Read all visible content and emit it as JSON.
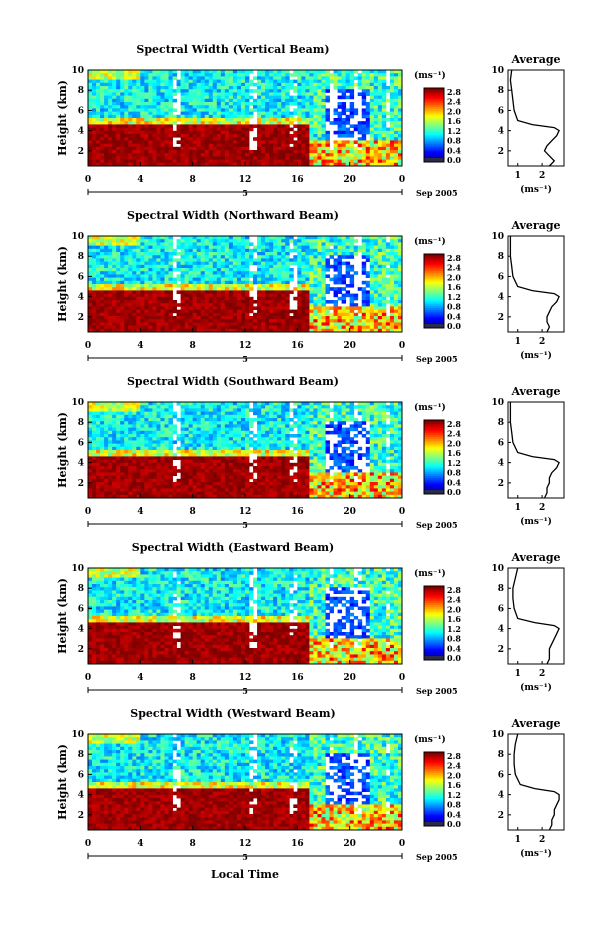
{
  "figure": {
    "xlabel": "Local Time"
  },
  "chart_data": [
    {
      "type": "heatmap",
      "title": "Spectral Width (Vertical Beam)",
      "ylabel": "Height (km)",
      "x_ticks": [
        "0",
        "4",
        "8",
        "12",
        "16",
        "20",
        "0"
      ],
      "y_ticks": [
        "2",
        "4",
        "6",
        "8",
        "10"
      ],
      "xlim": [
        0,
        24
      ],
      "ylim": [
        0.5,
        10
      ],
      "date_label": "5",
      "month_year": "Sep 2005",
      "colorbar": {
        "unit": "(ms⁻¹)",
        "ticks": [
          "0.0",
          "0.4",
          "0.8",
          "1.2",
          "1.6",
          "2.0",
          "2.4",
          "2.8"
        ]
      },
      "average": {
        "title": "Average",
        "xlabel": "(ms⁻¹)",
        "x_ticks": [
          "1",
          "2"
        ],
        "y_ticks": [
          "2",
          "4",
          "6",
          "8",
          "10"
        ],
        "profile": [
          [
            0.5,
            2.3
          ],
          [
            1,
            2.5
          ],
          [
            1.5,
            2.3
          ],
          [
            2,
            2.1
          ],
          [
            2.5,
            2.2
          ],
          [
            3,
            2.4
          ],
          [
            3.5,
            2.6
          ],
          [
            4,
            2.7
          ],
          [
            4.3,
            2.5
          ],
          [
            4.6,
            1.6
          ],
          [
            5,
            1.0
          ],
          [
            6,
            0.85
          ],
          [
            7,
            0.8
          ],
          [
            8,
            0.75
          ],
          [
            9,
            0.7
          ],
          [
            10,
            0.75
          ]
        ]
      }
    },
    {
      "type": "heatmap",
      "title": "Spectral Width (Northward Beam)",
      "ylabel": "Height (km)",
      "x_ticks": [
        "0",
        "4",
        "8",
        "12",
        "16",
        "20",
        "0"
      ],
      "y_ticks": [
        "2",
        "4",
        "6",
        "8",
        "10"
      ],
      "xlim": [
        0,
        24
      ],
      "ylim": [
        0.5,
        10
      ],
      "date_label": "5",
      "month_year": "Sep 2005",
      "colorbar": {
        "unit": "(ms⁻¹)",
        "ticks": [
          "0.0",
          "0.4",
          "0.8",
          "1.2",
          "1.6",
          "2.0",
          "2.4",
          "2.8"
        ]
      },
      "average": {
        "title": "Average",
        "xlabel": "(ms⁻¹)",
        "x_ticks": [
          "1",
          "2"
        ],
        "y_ticks": [
          "2",
          "4",
          "6",
          "8",
          "10"
        ],
        "profile": [
          [
            0.5,
            2.2
          ],
          [
            1,
            2.3
          ],
          [
            1.5,
            2.2
          ],
          [
            2,
            2.2
          ],
          [
            2.5,
            2.3
          ],
          [
            3,
            2.4
          ],
          [
            3.5,
            2.6
          ],
          [
            4,
            2.7
          ],
          [
            4.3,
            2.5
          ],
          [
            4.6,
            1.6
          ],
          [
            5,
            1.0
          ],
          [
            6,
            0.8
          ],
          [
            7,
            0.75
          ],
          [
            8,
            0.7
          ],
          [
            9,
            0.7
          ],
          [
            10,
            0.7
          ]
        ]
      }
    },
    {
      "type": "heatmap",
      "title": "Spectral Width (Southward Beam)",
      "ylabel": "Height (km)",
      "x_ticks": [
        "0",
        "4",
        "8",
        "12",
        "16",
        "20",
        "0"
      ],
      "y_ticks": [
        "2",
        "4",
        "6",
        "8",
        "10"
      ],
      "xlim": [
        0,
        24
      ],
      "ylim": [
        0.5,
        10
      ],
      "date_label": "5",
      "month_year": "Sep 2005",
      "colorbar": {
        "unit": "(ms⁻¹)",
        "ticks": [
          "0.0",
          "0.4",
          "0.8",
          "1.2",
          "1.6",
          "2.0",
          "2.4",
          "2.8"
        ]
      },
      "average": {
        "title": "Average",
        "xlabel": "(ms⁻¹)",
        "x_ticks": [
          "1",
          "2"
        ],
        "y_ticks": [
          "2",
          "4",
          "6",
          "8",
          "10"
        ],
        "profile": [
          [
            0.5,
            2.1
          ],
          [
            1,
            2.2
          ],
          [
            1.5,
            2.2
          ],
          [
            2,
            2.3
          ],
          [
            2.5,
            2.3
          ],
          [
            3,
            2.4
          ],
          [
            3.5,
            2.6
          ],
          [
            4,
            2.7
          ],
          [
            4.3,
            2.5
          ],
          [
            4.6,
            1.6
          ],
          [
            5,
            1.0
          ],
          [
            6,
            0.8
          ],
          [
            7,
            0.75
          ],
          [
            8,
            0.7
          ],
          [
            9,
            0.7
          ],
          [
            10,
            0.7
          ]
        ]
      }
    },
    {
      "type": "heatmap",
      "title": "Spectral Width (Eastward Beam)",
      "ylabel": "Height (km)",
      "x_ticks": [
        "0",
        "4",
        "8",
        "12",
        "16",
        "20",
        "0"
      ],
      "y_ticks": [
        "2",
        "4",
        "6",
        "8",
        "10"
      ],
      "xlim": [
        0,
        24
      ],
      "ylim": [
        0.5,
        10
      ],
      "date_label": "5",
      "month_year": "Sep 2005",
      "colorbar": {
        "unit": "(ms⁻¹)",
        "ticks": [
          "0.0",
          "0.4",
          "0.8",
          "1.2",
          "1.6",
          "2.0",
          "2.4",
          "2.8"
        ]
      },
      "average": {
        "title": "Average",
        "xlabel": "(ms⁻¹)",
        "x_ticks": [
          "1",
          "2"
        ],
        "y_ticks": [
          "2",
          "4",
          "6",
          "8",
          "10"
        ],
        "profile": [
          [
            0.5,
            2.2
          ],
          [
            1,
            2.3
          ],
          [
            1.5,
            2.3
          ],
          [
            2,
            2.3
          ],
          [
            2.5,
            2.4
          ],
          [
            3,
            2.5
          ],
          [
            3.5,
            2.6
          ],
          [
            4,
            2.7
          ],
          [
            4.3,
            2.5
          ],
          [
            4.6,
            1.7
          ],
          [
            5,
            1.0
          ],
          [
            6,
            0.85
          ],
          [
            7,
            0.8
          ],
          [
            8,
            0.8
          ],
          [
            9,
            0.9
          ],
          [
            10,
            1.0
          ]
        ]
      }
    },
    {
      "type": "heatmap",
      "title": "Spectral Width (Westward Beam)",
      "ylabel": "Height (km)",
      "x_ticks": [
        "0",
        "4",
        "8",
        "12",
        "16",
        "20",
        "0"
      ],
      "y_ticks": [
        "2",
        "4",
        "6",
        "8",
        "10"
      ],
      "xlim": [
        0,
        24
      ],
      "ylim": [
        0.5,
        10
      ],
      "date_label": "5",
      "month_year": "Sep 2005",
      "colorbar": {
        "unit": "(ms⁻¹)",
        "ticks": [
          "0.0",
          "0.4",
          "0.8",
          "1.2",
          "1.6",
          "2.0",
          "2.4",
          "2.8"
        ]
      },
      "average": {
        "title": "Average",
        "xlabel": "(ms⁻¹)",
        "x_ticks": [
          "1",
          "2"
        ],
        "y_ticks": [
          "2",
          "4",
          "6",
          "8",
          "10"
        ],
        "profile": [
          [
            0.5,
            2.3
          ],
          [
            1,
            2.4
          ],
          [
            1.5,
            2.4
          ],
          [
            2,
            2.5
          ],
          [
            2.5,
            2.5
          ],
          [
            3,
            2.6
          ],
          [
            3.5,
            2.7
          ],
          [
            4,
            2.7
          ],
          [
            4.3,
            2.5
          ],
          [
            4.6,
            1.7
          ],
          [
            5,
            1.1
          ],
          [
            6,
            0.9
          ],
          [
            7,
            0.85
          ],
          [
            8,
            0.85
          ],
          [
            9,
            0.9
          ],
          [
            10,
            1.0
          ]
        ]
      }
    }
  ]
}
